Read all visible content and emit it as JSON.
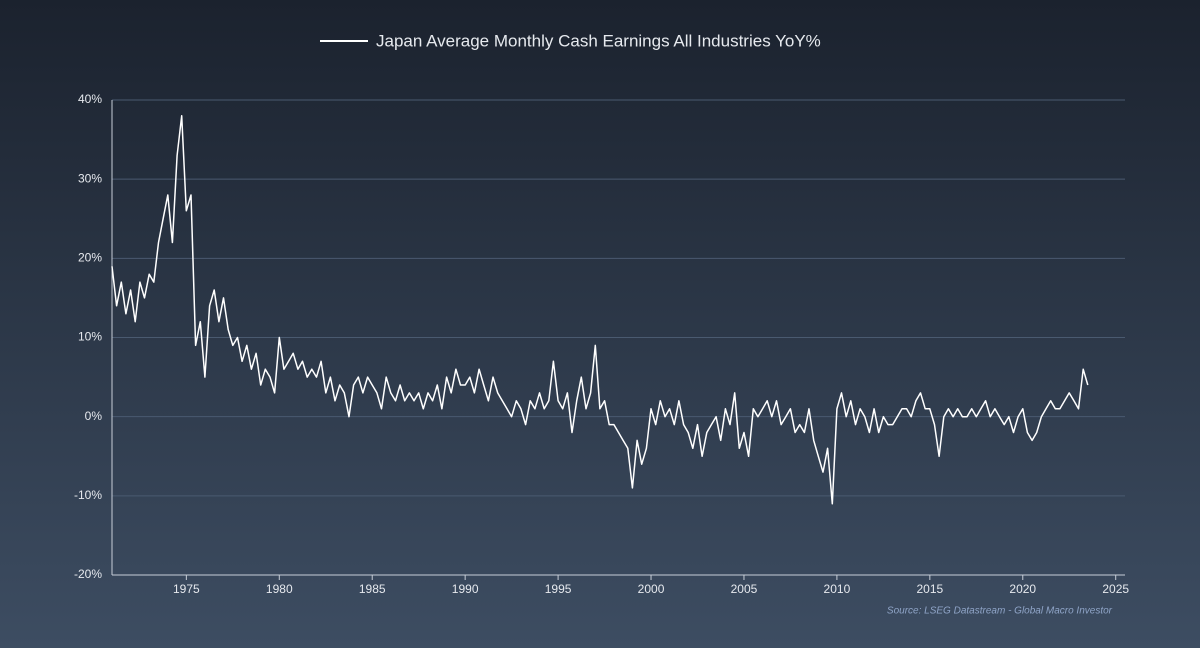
{
  "chart_data": {
    "type": "line",
    "source": "Source: LSEG Datastream - Global Macro Investor",
    "x": [
      1971,
      1971.25,
      1971.5,
      1971.75,
      1972,
      1972.25,
      1972.5,
      1972.75,
      1973,
      1973.25,
      1973.5,
      1973.75,
      1974,
      1974.25,
      1974.5,
      1974.75,
      1975,
      1975.25,
      1975.5,
      1975.75,
      1976,
      1976.25,
      1976.5,
      1976.75,
      1977,
      1977.25,
      1977.5,
      1977.75,
      1978,
      1978.25,
      1978.5,
      1978.75,
      1979,
      1979.25,
      1979.5,
      1979.75,
      1980,
      1980.25,
      1980.5,
      1980.75,
      1981,
      1981.25,
      1981.5,
      1981.75,
      1982,
      1982.25,
      1982.5,
      1982.75,
      1983,
      1983.25,
      1983.5,
      1983.75,
      1984,
      1984.25,
      1984.5,
      1984.75,
      1985,
      1985.25,
      1985.5,
      1985.75,
      1986,
      1986.25,
      1986.5,
      1986.75,
      1987,
      1987.25,
      1987.5,
      1987.75,
      1988,
      1988.25,
      1988.5,
      1988.75,
      1989,
      1989.25,
      1989.5,
      1989.75,
      1990,
      1990.25,
      1990.5,
      1990.75,
      1991,
      1991.25,
      1991.5,
      1991.75,
      1992,
      1992.25,
      1992.5,
      1992.75,
      1993,
      1993.25,
      1993.5,
      1993.75,
      1994,
      1994.25,
      1994.5,
      1994.75,
      1995,
      1995.25,
      1995.5,
      1995.75,
      1996,
      1996.25,
      1996.5,
      1996.75,
      1997,
      1997.25,
      1997.5,
      1997.75,
      1998,
      1998.25,
      1998.5,
      1998.75,
      1999,
      1999.25,
      1999.5,
      1999.75,
      2000,
      2000.25,
      2000.5,
      2000.75,
      2001,
      2001.25,
      2001.5,
      2001.75,
      2002,
      2002.25,
      2002.5,
      2002.75,
      2003,
      2003.25,
      2003.5,
      2003.75,
      2004,
      2004.25,
      2004.5,
      2004.75,
      2005,
      2005.25,
      2005.5,
      2005.75,
      2006,
      2006.25,
      2006.5,
      2006.75,
      2007,
      2007.25,
      2007.5,
      2007.75,
      2008,
      2008.25,
      2008.5,
      2008.75,
      2009,
      2009.25,
      2009.5,
      2009.75,
      2010,
      2010.25,
      2010.5,
      2010.75,
      2011,
      2011.25,
      2011.5,
      2011.75,
      2012,
      2012.25,
      2012.5,
      2012.75,
      2013,
      2013.25,
      2013.5,
      2013.75,
      2014,
      2014.25,
      2014.5,
      2014.75,
      2015,
      2015.25,
      2015.5,
      2015.75,
      2016,
      2016.25,
      2016.5,
      2016.75,
      2017,
      2017.25,
      2017.5,
      2017.75,
      2018,
      2018.25,
      2018.5,
      2018.75,
      2019,
      2019.25,
      2019.5,
      2019.75,
      2020,
      2020.25,
      2020.5,
      2020.75,
      2021,
      2021.25,
      2021.5,
      2021.75,
      2022,
      2022.25,
      2022.5,
      2022.75,
      2023,
      2023.25,
      2023.5
    ],
    "series": [
      {
        "name": "Japan Average Monthly Cash Earnings All Industries YoY%",
        "color": "#ffffff",
        "values": [
          19,
          14,
          17,
          13,
          16,
          12,
          17,
          15,
          18,
          17,
          22,
          25,
          28,
          22,
          33,
          38,
          26,
          28,
          9,
          12,
          5,
          14,
          16,
          12,
          15,
          11,
          9,
          10,
          7,
          9,
          6,
          8,
          4,
          6,
          5,
          3,
          10,
          6,
          7,
          8,
          6,
          7,
          5,
          6,
          5,
          7,
          3,
          5,
          2,
          4,
          3,
          0,
          4,
          5,
          3,
          5,
          4,
          3,
          1,
          5,
          3,
          2,
          4,
          2,
          3,
          2,
          3,
          1,
          3,
          2,
          4,
          1,
          5,
          3,
          6,
          4,
          4,
          5,
          3,
          6,
          4,
          2,
          5,
          3,
          2,
          1,
          0,
          2,
          1,
          -1,
          2,
          1,
          3,
          1,
          2,
          7,
          2,
          1,
          3,
          -2,
          2,
          5,
          1,
          3,
          9,
          1,
          2,
          -1,
          -1,
          -2,
          -3,
          -4,
          -9,
          -3,
          -6,
          -4,
          1,
          -1,
          2,
          0,
          1,
          -1,
          2,
          -1,
          -2,
          -4,
          -1,
          -5,
          -2,
          -1,
          0,
          -3,
          1,
          -1,
          3,
          -4,
          -2,
          -5,
          1,
          0,
          1,
          2,
          0,
          2,
          -1,
          0,
          1,
          -2,
          -1,
          -2,
          1,
          -3,
          -5,
          -7,
          -4,
          -11,
          1,
          3,
          0,
          2,
          -1,
          1,
          0,
          -2,
          1,
          -2,
          0,
          -1,
          -1,
          0,
          1,
          1,
          0,
          2,
          3,
          1,
          1,
          -1,
          -5,
          0,
          1,
          0,
          1,
          0,
          0,
          1,
          0,
          1,
          2,
          0,
          1,
          0,
          -1,
          0,
          -2,
          0,
          1,
          -2,
          -3,
          -2,
          0,
          1,
          2,
          1,
          1,
          2,
          3,
          2,
          1,
          6,
          4
        ]
      }
    ],
    "xlim": [
      1971,
      2025.5
    ],
    "xticks": [
      1975,
      1980,
      1985,
      1990,
      1995,
      2000,
      2005,
      2010,
      2015,
      2020,
      2025
    ],
    "ylim": [
      -20,
      40
    ],
    "yticks": [
      {
        "value": -20,
        "label": "-20%"
      },
      {
        "value": -10,
        "label": "-10%"
      },
      {
        "value": 0,
        "label": "0%"
      },
      {
        "value": 10,
        "label": "10%"
      },
      {
        "value": 20,
        "label": "20%"
      },
      {
        "value": 30,
        "label": "30%"
      },
      {
        "value": 40,
        "label": "40%"
      }
    ],
    "grid": true
  }
}
